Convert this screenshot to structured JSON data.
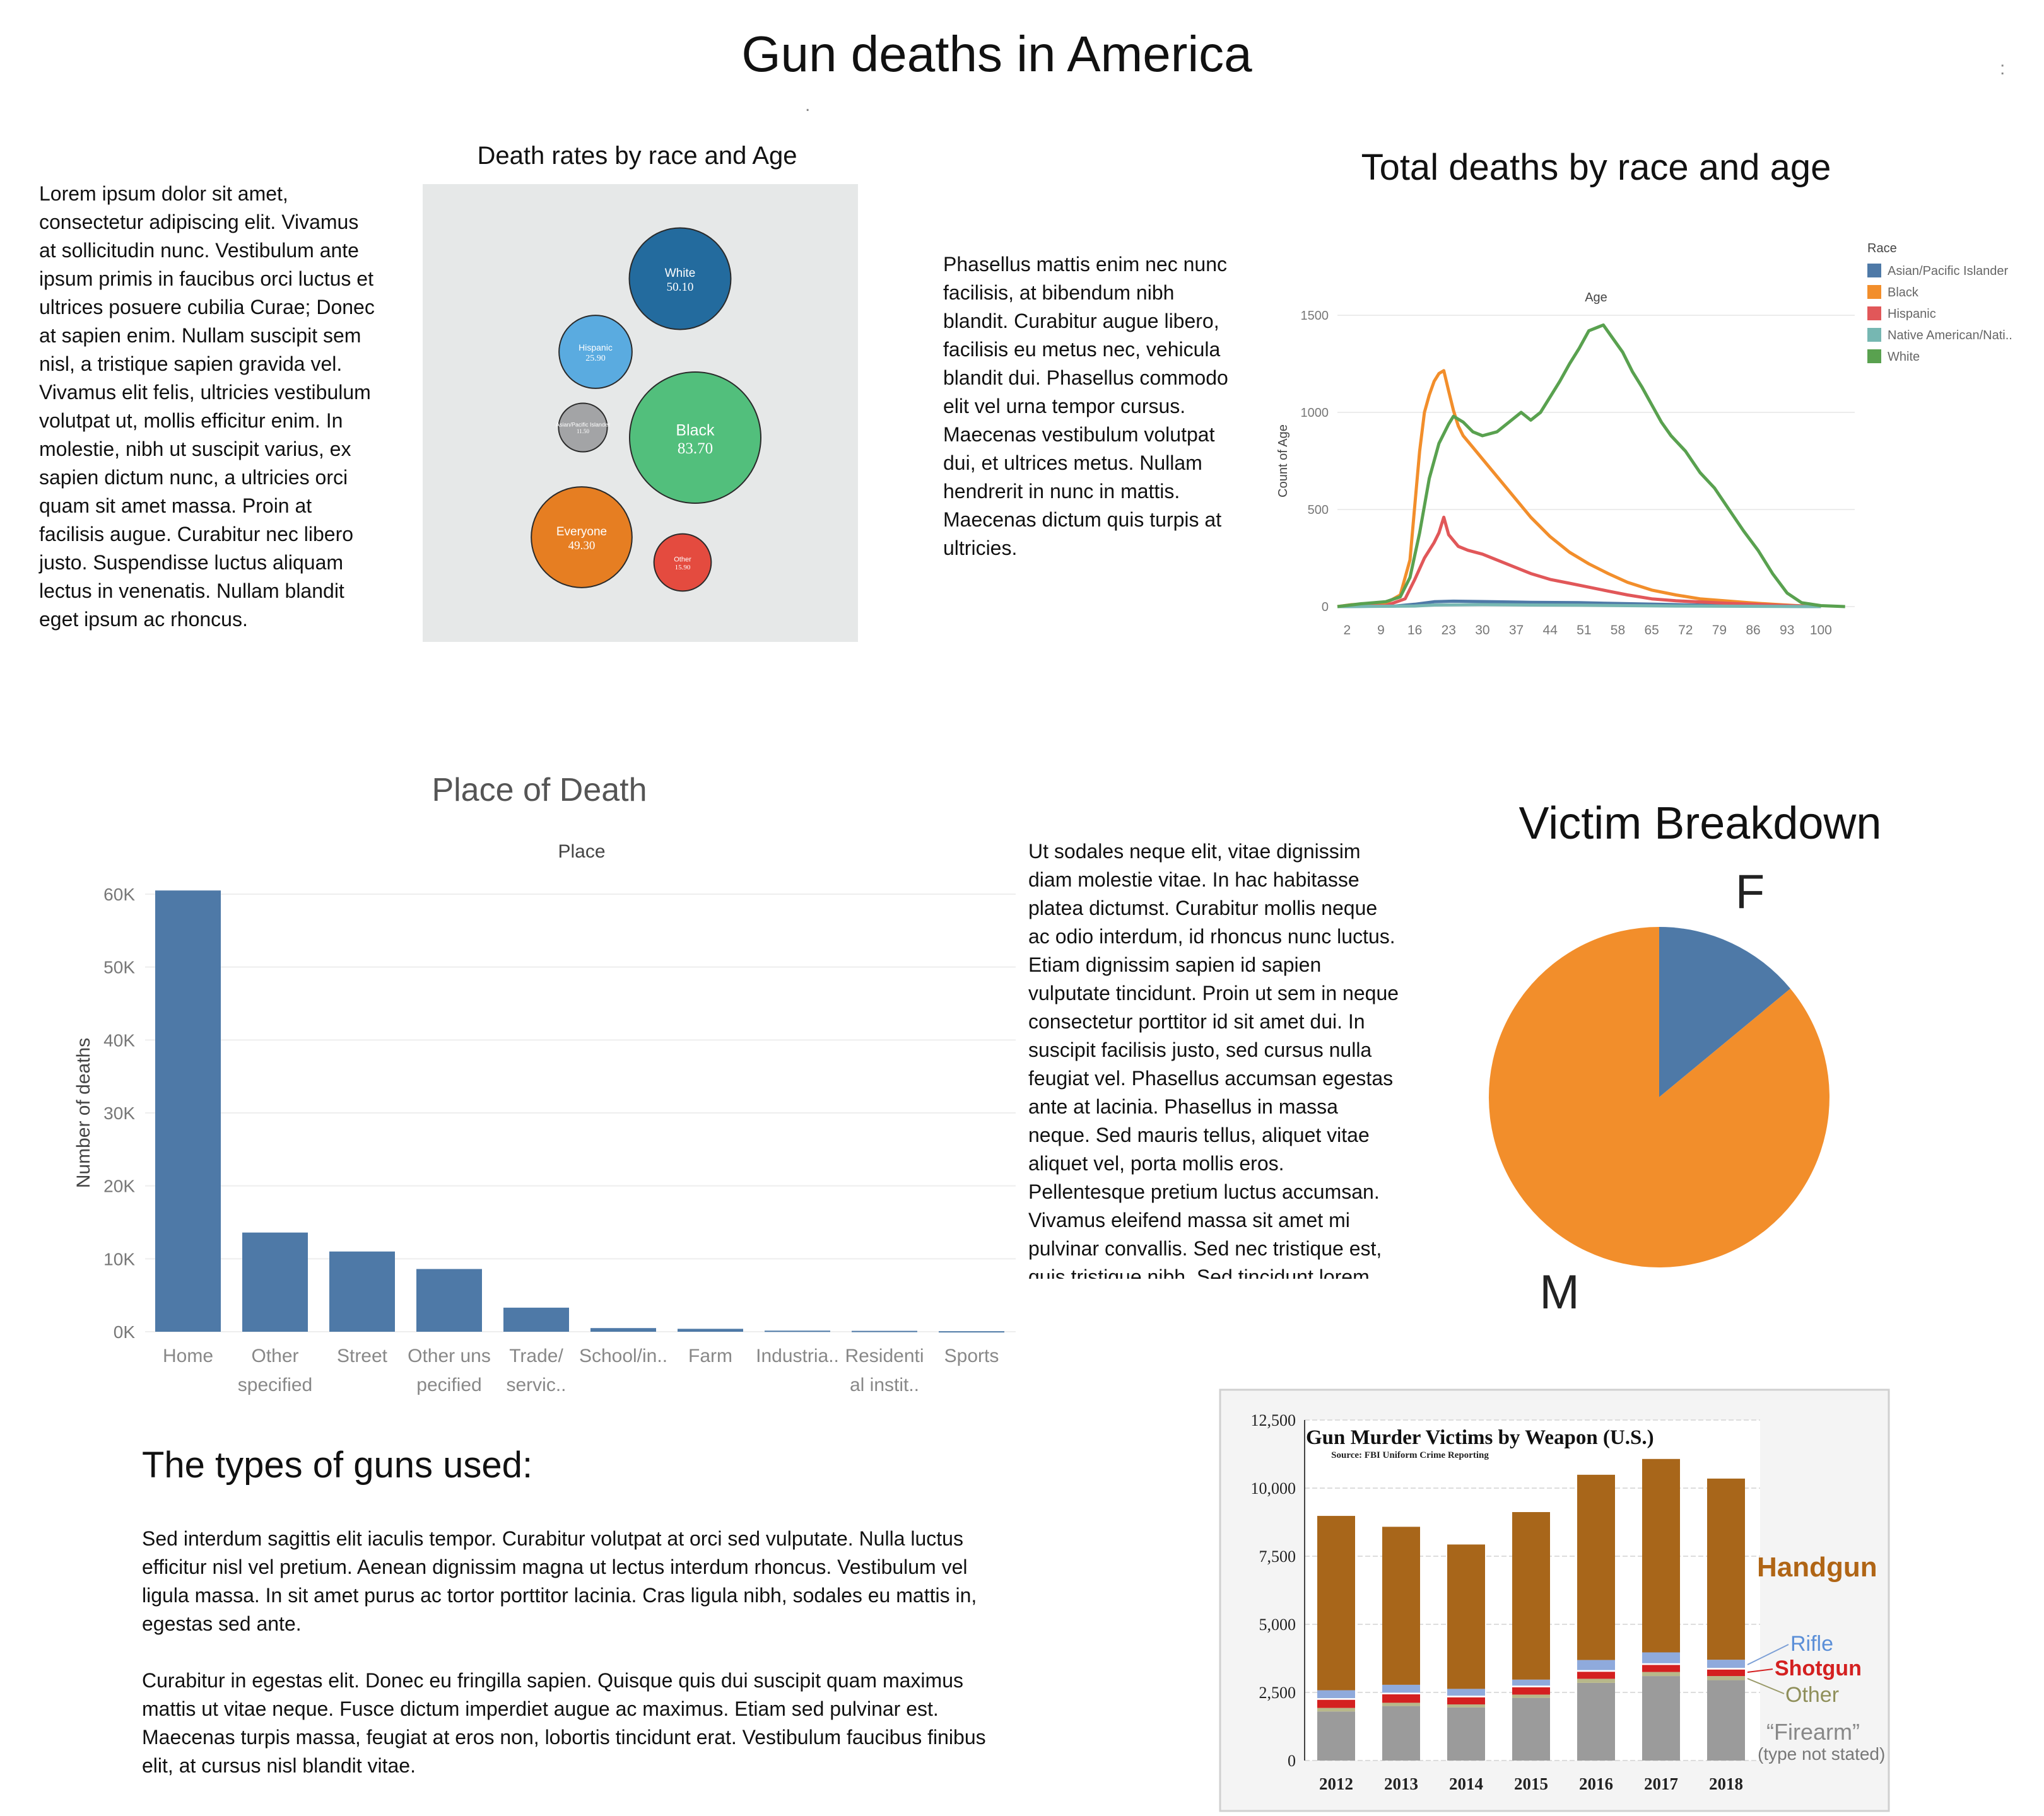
{
  "page": {
    "title": "Gun deaths in America",
    "types_heading": "The types of guns used:"
  },
  "text": {
    "left_paragraph": "Lorem ipsum dolor sit amet, consectetur adipiscing elit. Vivamus at sollicitudin nunc. Vestibulum ante ipsum primis in faucibus orci luctus et ultrices posuere cubilia Curae; Donec at sapien enim. Nullam suscipit sem nisl, a tristique sapien gravida vel. Vivamus elit felis, ultricies vestibulum volutpat ut, mollis efficitur enim. In molestie, nibh ut suscipit varius, ex sapien dictum nunc, a ultricies orci quam sit amet massa. Proin at facilisis augue. Curabitur nec libero justo. Suspendisse luctus aliquam lectus in venenatis. Nullam blandit eget ipsum ac rhoncus.",
    "middle_paragraph": "Phasellus mattis enim nec nunc facilisis, at bibendum nibh blandit. Curabitur augue libero, facilisis eu metus nec, vehicula blandit dui. Phasellus commodo elit vel urna tempor cursus. Maecenas vestibulum volutpat dui, et ultrices metus. Nullam hendrerit in nunc in mattis. Maecenas dictum quis turpis at ultricies.",
    "right_paragraph": "Ut sodales neque elit, vitae dignissim diam molestie vitae. In hac habitasse platea dictumst. Curabitur mollis neque ac odio interdum, id rhoncus nunc luctus. Etiam dignissim sapien id sapien vulputate tincidunt. Proin ut sem in neque consectetur porttitor id sit amet dui. In suscipit facilisis justo, sed cursus nulla feugiat vel. Phasellus accumsan egestas ante at lacinia. Phasellus in massa neque. Sed mauris tellus, aliquet vitae aliquet vel, porta mollis eros. Pellentesque pretium luctus accumsan. Vivamus eleifend massa sit amet mi pulvinar convallis. Sed nec tristique est, quis tristique nibh. Sed tincidunt lorem",
    "bottom_paragraph_1": "Sed interdum sagittis elit iaculis tempor. Curabitur volutpat at orci sed vulputate. Nulla luctus efficitur nisl vel pretium. Aenean dignissim magna ut lectus interdum rhoncus. Vestibulum vel ligula massa. In sit amet purus ac tortor porttitor lacinia. Cras ligula nibh, sodales eu mattis in, egestas sed ante.",
    "bottom_paragraph_2": "Curabitur in egestas elit. Donec eu fringilla sapien. Quisque quis dui suscipit quam maximus mattis ut vitae neque. Fusce dictum imperdiet augue ac maximus. Etiam sed pulvinar est. Maecenas turpis massa, feugiat at eros non, lobortis tincidunt erat. Vestibulum faucibus finibus elit, at cursus nisl blandit vitae."
  },
  "chart_data": [
    {
      "id": "bubble",
      "type": "bubble",
      "title": "Death rates by race and Age",
      "background": "#e6e8e8",
      "items": [
        {
          "label": "White",
          "value": 50.1,
          "value_text": "50.10",
          "color": "#236b9e"
        },
        {
          "label": "Hispanic",
          "value": 25.9,
          "value_text": "25.90",
          "color": "#5aabe0"
        },
        {
          "label": "Asian/Pacific Islander",
          "value": 11.5,
          "value_text": "11.50",
          "color": "#a3a4a6"
        },
        {
          "label": "Black",
          "value": 83.7,
          "value_text": "83.70",
          "color": "#52bf7c"
        },
        {
          "label": "Everyone",
          "value": 49.3,
          "value_text": "49.30",
          "color": "#e67e22"
        },
        {
          "label": "Other",
          "value": 15.9,
          "value_text": "15.90",
          "color": "#e44b3f"
        }
      ]
    },
    {
      "id": "lines",
      "type": "line",
      "title": "Total deaths by race and age",
      "axis_title_top": "Age",
      "ylabel": "Count of Age",
      "ylim": [
        0,
        1500
      ],
      "yticks": [
        0,
        500,
        1000,
        1500
      ],
      "xlim": [
        0,
        107
      ],
      "xticks": [
        2,
        9,
        16,
        23,
        30,
        37,
        44,
        51,
        58,
        65,
        72,
        79,
        86,
        93,
        100
      ],
      "grid": true,
      "legend_title": "Race",
      "legend_position": "top-right",
      "series": [
        {
          "name": "Asian/Pacific Islander",
          "color": "#4e79a7",
          "points": [
            [
              0,
              0
            ],
            [
              12,
              3
            ],
            [
              16,
              12
            ],
            [
              20,
              25
            ],
            [
              24,
              28
            ],
            [
              30,
              26
            ],
            [
              40,
              22
            ],
            [
              50,
              20
            ],
            [
              60,
              15
            ],
            [
              70,
              10
            ],
            [
              80,
              6
            ],
            [
              90,
              2
            ],
            [
              100,
              0
            ]
          ]
        },
        {
          "name": "Black",
          "color": "#f28e2b",
          "points": [
            [
              0,
              0
            ],
            [
              3,
              10
            ],
            [
              6,
              12
            ],
            [
              10,
              18
            ],
            [
              13,
              60
            ],
            [
              15,
              240
            ],
            [
              16,
              520
            ],
            [
              17,
              800
            ],
            [
              18,
              1000
            ],
            [
              19,
              1090
            ],
            [
              20,
              1160
            ],
            [
              21,
              1200
            ],
            [
              22,
              1215
            ],
            [
              23,
              1110
            ],
            [
              24,
              1010
            ],
            [
              25,
              930
            ],
            [
              26,
              880
            ],
            [
              28,
              820
            ],
            [
              30,
              760
            ],
            [
              33,
              670
            ],
            [
              36,
              580
            ],
            [
              40,
              460
            ],
            [
              44,
              360
            ],
            [
              48,
              280
            ],
            [
              52,
              220
            ],
            [
              56,
              170
            ],
            [
              60,
              125
            ],
            [
              65,
              85
            ],
            [
              70,
              60
            ],
            [
              75,
              40
            ],
            [
              80,
              30
            ],
            [
              85,
              20
            ],
            [
              90,
              12
            ],
            [
              95,
              5
            ],
            [
              100,
              0
            ]
          ]
        },
        {
          "name": "Hispanic",
          "color": "#e15759",
          "points": [
            [
              0,
              0
            ],
            [
              10,
              5
            ],
            [
              14,
              40
            ],
            [
              16,
              140
            ],
            [
              18,
              250
            ],
            [
              20,
              330
            ],
            [
              21,
              380
            ],
            [
              22,
              460
            ],
            [
              23,
              370
            ],
            [
              25,
              310
            ],
            [
              27,
              290
            ],
            [
              30,
              270
            ],
            [
              33,
              240
            ],
            [
              36,
              210
            ],
            [
              40,
              170
            ],
            [
              44,
              140
            ],
            [
              48,
              120
            ],
            [
              52,
              100
            ],
            [
              56,
              80
            ],
            [
              60,
              60
            ],
            [
              65,
              40
            ],
            [
              70,
              30
            ],
            [
              80,
              18
            ],
            [
              90,
              8
            ],
            [
              100,
              0
            ]
          ]
        },
        {
          "name": "Native American/Nati..",
          "color": "#76b7b2",
          "points": [
            [
              0,
              0
            ],
            [
              16,
              3
            ],
            [
              20,
              8
            ],
            [
              30,
              10
            ],
            [
              40,
              8
            ],
            [
              50,
              7
            ],
            [
              60,
              5
            ],
            [
              70,
              3
            ],
            [
              80,
              2
            ],
            [
              100,
              0
            ]
          ]
        },
        {
          "name": "White",
          "color": "#59a14f",
          "points": [
            [
              0,
              0
            ],
            [
              5,
              15
            ],
            [
              10,
              25
            ],
            [
              13,
              50
            ],
            [
              15,
              150
            ],
            [
              17,
              380
            ],
            [
              19,
              660
            ],
            [
              21,
              840
            ],
            [
              23,
              940
            ],
            [
              24,
              980
            ],
            [
              26,
              950
            ],
            [
              28,
              900
            ],
            [
              30,
              880
            ],
            [
              33,
              900
            ],
            [
              36,
              960
            ],
            [
              38,
              1000
            ],
            [
              40,
              960
            ],
            [
              42,
              1000
            ],
            [
              44,
              1080
            ],
            [
              46,
              1160
            ],
            [
              48,
              1250
            ],
            [
              50,
              1330
            ],
            [
              52,
              1420
            ],
            [
              54,
              1440
            ],
            [
              55,
              1450
            ],
            [
              57,
              1380
            ],
            [
              59,
              1310
            ],
            [
              61,
              1210
            ],
            [
              63,
              1130
            ],
            [
              65,
              1040
            ],
            [
              67,
              950
            ],
            [
              69,
              880
            ],
            [
              72,
              800
            ],
            [
              75,
              690
            ],
            [
              78,
              610
            ],
            [
              81,
              500
            ],
            [
              84,
              390
            ],
            [
              87,
              290
            ],
            [
              90,
              170
            ],
            [
              93,
              70
            ],
            [
              96,
              20
            ],
            [
              100,
              5
            ],
            [
              105,
              0
            ]
          ]
        }
      ]
    },
    {
      "id": "place",
      "type": "bar",
      "title": "Place of Death",
      "subtitle": "Place",
      "ylabel": "Number of deaths",
      "ylim": [
        0,
        60000
      ],
      "yticks": [
        "0K",
        "10K",
        "20K",
        "30K",
        "40K",
        "50K",
        "60K"
      ],
      "ytick_values": [
        0,
        10000,
        20000,
        30000,
        40000,
        50000,
        60000
      ],
      "color": "#4e79a7",
      "categories": [
        "Home",
        "Other specified",
        "Street",
        "Other unspecified",
        "Trade/servic..",
        "School/in..",
        "Farm",
        "Industria..",
        "Residential instit..",
        "Sports"
      ],
      "category_lines": [
        [
          "Home"
        ],
        [
          "Other",
          "specified"
        ],
        [
          "Street"
        ],
        [
          "Other uns",
          "pecified"
        ],
        [
          "Trade/",
          "servic.."
        ],
        [
          "School/in.."
        ],
        [
          "Farm"
        ],
        [
          "Industria.."
        ],
        [
          "Residenti",
          "al instit.."
        ],
        [
          "Sports"
        ]
      ],
      "values": [
        60500,
        13600,
        11000,
        8600,
        3300,
        500,
        400,
        150,
        120,
        70
      ]
    },
    {
      "id": "victims",
      "type": "pie",
      "title": "Victim Breakdown",
      "slices": [
        {
          "label": "F",
          "value": 14,
          "color": "#4e79a7"
        },
        {
          "label": "M",
          "value": 86,
          "color": "#f28e2b"
        }
      ]
    },
    {
      "id": "weapons",
      "type": "bar",
      "stacked": true,
      "title": "Gun Murder Victims by Weapon (U.S.)",
      "subtitle": "Source: FBI Uniform Crime Reporting",
      "ylim": [
        0,
        12500
      ],
      "yticks": [
        "0",
        "2,500",
        "5,000",
        "7,500",
        "10,000",
        "12,500"
      ],
      "ytick_values": [
        0,
        2500,
        5000,
        7500,
        10000,
        12500
      ],
      "categories": [
        "2012",
        "2013",
        "2014",
        "2015",
        "2016",
        "2017",
        "2018"
      ],
      "series": [
        {
          "name": "“Firearm”",
          "sublabel": "(type not stated)",
          "color": "#9b9b9b",
          "values": [
            1800,
            2000,
            1950,
            2300,
            2850,
            3100,
            2950
          ]
        },
        {
          "name": "Other",
          "color": "#b8b88a",
          "values": [
            130,
            120,
            110,
            120,
            150,
            150,
            150
          ]
        },
        {
          "name": "Shotgun",
          "color": "#d42020",
          "values": [
            300,
            310,
            260,
            270,
            260,
            260,
            240
          ]
        },
        {
          "name": "",
          "color": "#ffffff",
          "values": [
            60,
            60,
            60,
            60,
            60,
            60,
            60
          ]
        },
        {
          "name": "Rifle",
          "color": "#8faadc",
          "values": [
            290,
            290,
            250,
            220,
            370,
            400,
            300
          ]
        },
        {
          "name": "Handgun",
          "color": "#a8661a",
          "values": [
            6400,
            5800,
            5300,
            6150,
            6800,
            7100,
            6650
          ]
        }
      ]
    }
  ]
}
